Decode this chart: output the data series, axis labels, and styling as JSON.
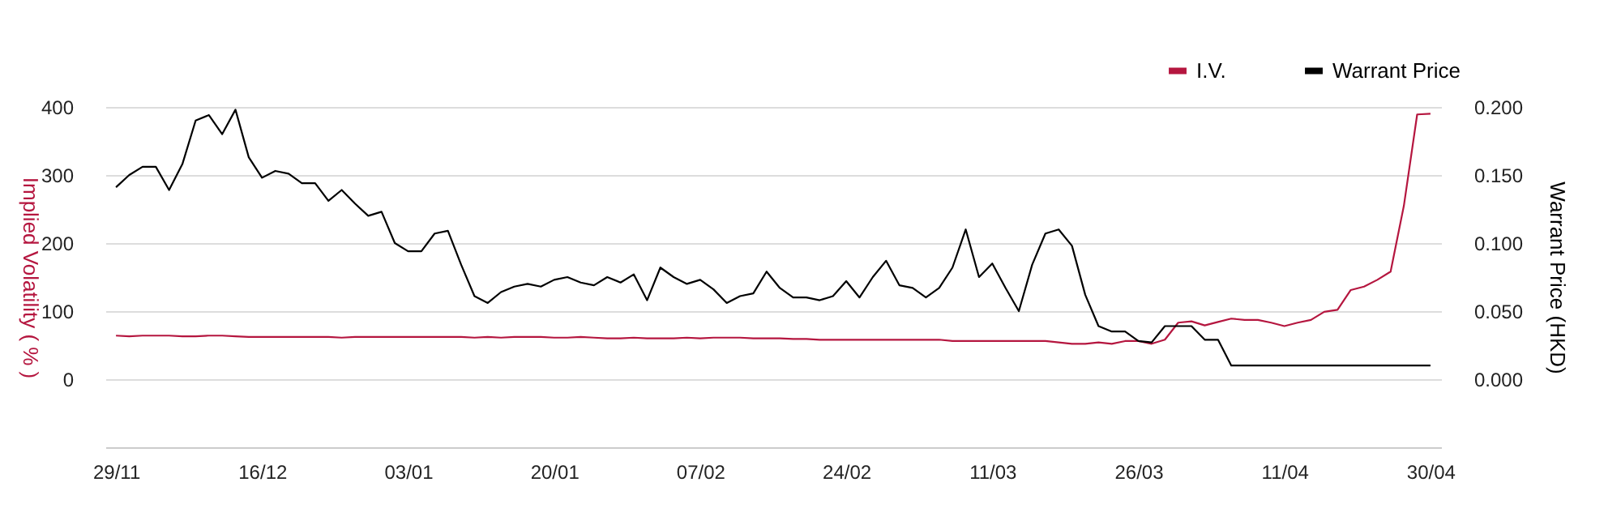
{
  "chart_data": {
    "type": "line",
    "ylabel": "Implied Volatility ( % )",
    "y2label": "Warrant Price (HKD)",
    "categories": [
      "29/11",
      null,
      null,
      null,
      null,
      null,
      null,
      null,
      null,
      null,
      null,
      "16/12",
      null,
      null,
      null,
      null,
      null,
      null,
      null,
      null,
      null,
      null,
      "03/01",
      null,
      null,
      null,
      null,
      null,
      null,
      null,
      null,
      null,
      null,
      "20/01",
      null,
      null,
      null,
      null,
      null,
      null,
      null,
      null,
      null,
      null,
      "07/02",
      null,
      null,
      null,
      null,
      null,
      null,
      null,
      null,
      null,
      null,
      "24/02",
      null,
      null,
      null,
      null,
      null,
      null,
      null,
      null,
      null,
      null,
      "11/03",
      null,
      null,
      null,
      null,
      null,
      null,
      null,
      null,
      null,
      null,
      "26/03",
      null,
      null,
      null,
      null,
      null,
      null,
      null,
      null,
      null,
      null,
      "11/04",
      null,
      null,
      null,
      null,
      null,
      null,
      null,
      null,
      null,
      null,
      "30/04"
    ],
    "series": [
      {
        "name": "I.V.",
        "color": "#b5163f",
        "values": [
          64,
          63,
          64,
          64,
          64,
          63,
          63,
          64,
          64,
          63,
          62,
          62,
          62,
          62,
          62,
          62,
          62,
          61,
          62,
          62,
          62,
          62,
          62,
          62,
          62,
          62,
          62,
          61,
          62,
          61,
          62,
          62,
          62,
          61,
          61,
          62,
          61,
          60,
          60,
          61,
          60,
          60,
          60,
          61,
          60,
          61,
          61,
          61,
          60,
          60,
          60,
          59,
          59,
          58,
          58,
          58,
          58,
          58,
          58,
          58,
          58,
          58,
          58,
          56,
          56,
          56,
          56,
          56,
          56,
          56,
          56,
          54,
          52,
          52,
          54,
          52,
          56,
          56,
          52,
          58,
          83,
          85,
          79,
          84,
          89,
          87,
          87,
          83,
          78,
          83,
          87,
          99,
          102,
          131,
          136,
          146,
          158,
          255,
          389,
          390
        ]
      },
      {
        "name": "Warrant Price",
        "color": "#000000",
        "axis": "y2",
        "values": [
          0.141,
          0.15,
          0.156,
          0.156,
          0.139,
          0.158,
          0.19,
          0.194,
          0.18,
          0.198,
          0.163,
          0.148,
          0.153,
          0.151,
          0.144,
          0.144,
          0.131,
          0.139,
          0.129,
          0.12,
          0.123,
          0.1,
          0.094,
          0.094,
          0.107,
          0.109,
          0.084,
          0.061,
          0.056,
          0.064,
          0.068,
          0.07,
          0.068,
          0.073,
          0.075,
          0.071,
          0.069,
          0.075,
          0.071,
          0.077,
          0.058,
          0.082,
          0.075,
          0.07,
          0.073,
          0.066,
          0.056,
          0.061,
          0.063,
          0.079,
          0.067,
          0.06,
          0.06,
          0.058,
          0.061,
          0.072,
          0.06,
          0.075,
          0.087,
          0.069,
          0.067,
          0.06,
          0.067,
          0.082,
          0.11,
          0.075,
          0.085,
          0.067,
          0.05,
          0.084,
          0.107,
          0.11,
          0.098,
          0.062,
          0.039,
          0.035,
          0.035,
          0.028,
          0.027,
          0.039,
          0.039,
          0.039,
          0.029,
          0.029,
          0.01,
          0.01,
          0.01,
          0.01,
          0.01,
          0.01,
          0.01,
          0.01,
          0.01,
          0.01,
          0.01,
          0.01,
          0.01,
          0.01,
          0.01,
          0.01
        ]
      }
    ],
    "ylim": [
      -100,
      400
    ],
    "yticks": [
      0,
      100,
      200,
      300,
      400
    ],
    "y2lim": [
      -0.05,
      0.2
    ],
    "y2ticks": [
      {
        "value": 0,
        "label": "0.000"
      },
      {
        "value": 0.05,
        "label": "0.050"
      },
      {
        "value": 0.1,
        "label": "0.100"
      },
      {
        "value": 0.15,
        "label": "0.150"
      },
      {
        "value": 0.2,
        "label": "0.200"
      }
    ],
    "grid": "y",
    "legend": "top right"
  }
}
